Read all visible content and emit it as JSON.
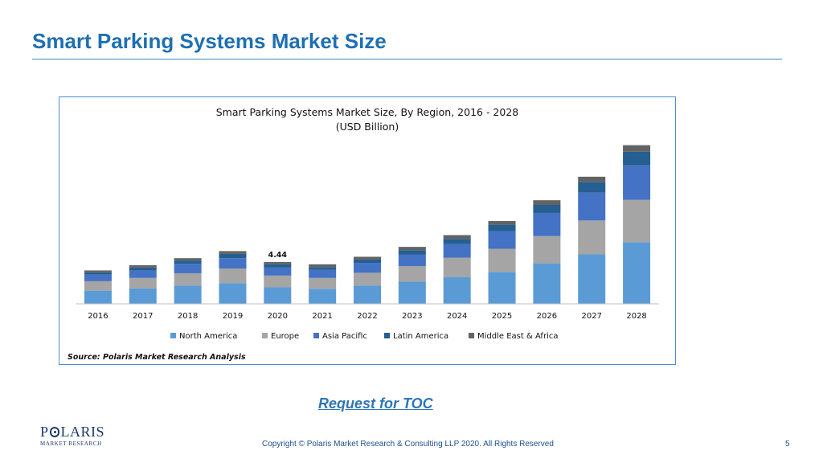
{
  "slide": {
    "title": "Smart Parking Systems Market Size",
    "toc_link": "Request for TOC",
    "copyright": "Copyright © Polaris Market Research & Consulting LLP 2020. All Rights Reserved",
    "page_number": "5",
    "logo": {
      "top": "P LARIS",
      "bottom": "MARKET RESEARCH",
      "icon": "polaris-star-icon"
    }
  },
  "colors": {
    "title": "#1f6fb2",
    "north_america": "#5b9bd5",
    "europe": "#a5a5a5",
    "asia_pacific": "#4472c4",
    "latin_america": "#255e91",
    "middle_east_africa": "#636363"
  },
  "chart_data": {
    "type": "bar",
    "stacked": true,
    "title": "Smart Parking Systems Market Size, By Region, 2016 - 2028",
    "subtitle": "(USD Billion)",
    "source": "Source: Polaris Market Research Analysis",
    "annotation": {
      "category": "2020",
      "text": "4.44"
    },
    "categories": [
      "2016",
      "2017",
      "2018",
      "2019",
      "2020",
      "2021",
      "2022",
      "2023",
      "2024",
      "2025",
      "2026",
      "2027",
      "2028"
    ],
    "series": [
      {
        "name": "North America",
        "color": "#5b9bd5",
        "values": [
          1.4,
          1.65,
          1.95,
          2.2,
          1.75,
          1.6,
          1.95,
          2.35,
          2.85,
          3.4,
          4.3,
          5.25,
          6.55
        ]
      },
      {
        "name": "Europe",
        "color": "#a5a5a5",
        "values": [
          1.0,
          1.1,
          1.3,
          1.55,
          1.25,
          1.15,
          1.35,
          1.65,
          2.05,
          2.45,
          2.9,
          3.6,
          4.5
        ]
      },
      {
        "name": "Asia Pacific",
        "color": "#4472c4",
        "values": [
          0.7,
          0.8,
          1.0,
          1.1,
          0.85,
          0.85,
          1.05,
          1.25,
          1.45,
          1.85,
          2.45,
          2.95,
          3.65
        ]
      },
      {
        "name": "Latin America",
        "color": "#255e91",
        "values": [
          0.25,
          0.3,
          0.35,
          0.45,
          0.35,
          0.3,
          0.35,
          0.45,
          0.55,
          0.7,
          0.85,
          1.15,
          1.45
        ]
      },
      {
        "name": "Middle East & Africa",
        "color": "#636363",
        "values": [
          0.2,
          0.25,
          0.25,
          0.3,
          0.24,
          0.3,
          0.3,
          0.35,
          0.4,
          0.4,
          0.5,
          0.55,
          0.7
        ]
      }
    ],
    "ylim": [
      0,
      17.5
    ],
    "grid": false,
    "legend": "bottom"
  }
}
